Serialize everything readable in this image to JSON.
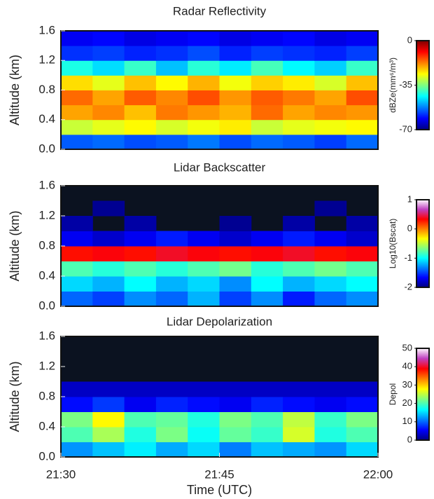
{
  "chart_data": [
    {
      "type": "heatmap",
      "title": "Radar Reflectivity",
      "ylabel": "Altitude (km)",
      "ylim": [
        0,
        1.6
      ],
      "yticks": [
        {
          "value": 0,
          "label": "0.0"
        },
        0.4,
        0.8,
        1.2,
        1.6
      ],
      "xlim": [
        "21:30",
        "22:00"
      ],
      "x": [
        "21:30",
        "21:33",
        "21:36",
        "21:39",
        "21:42",
        "21:45",
        "21:48",
        "21:51",
        "21:54",
        "21:57"
      ],
      "y": [
        0,
        0.2,
        0.4,
        0.6,
        0.8,
        1.0,
        1.2,
        1.4
      ],
      "z": [
        [
          -55,
          -54,
          -56,
          -55,
          -53,
          -56,
          -54,
          -55,
          -57,
          -54
        ],
        [
          -30,
          -28,
          -26,
          -29,
          -27,
          -25,
          -30,
          -28,
          -27,
          -26
        ],
        [
          -20,
          -18,
          -22,
          -17,
          -19,
          -21,
          -16,
          -20,
          -18,
          -19
        ],
        [
          -16,
          -20,
          -15,
          -18,
          -14,
          -19,
          -15,
          -17,
          -20,
          -14
        ],
        [
          -24,
          -28,
          -22,
          -26,
          -21,
          -27,
          -23,
          -25,
          -29,
          -22
        ],
        [
          -42,
          -46,
          -40,
          -48,
          -41,
          -45,
          -39,
          -44,
          -47,
          -40
        ],
        [
          -58,
          -57,
          -59,
          -58,
          -56,
          -59,
          -57,
          -58,
          -59,
          -57
        ],
        [
          -62,
          -61,
          -63,
          -62,
          -61,
          -63,
          -62,
          -61,
          -63,
          -62
        ]
      ],
      "colorbar": {
        "label": "dBZe(mm⁶/m³)",
        "zlim": [
          -70,
          0
        ],
        "zticks": [
          -70,
          -35,
          0
        ],
        "colormap": [
          "#00007f",
          "#0000ff",
          "#0080ff",
          "#00ffff",
          "#80ff80",
          "#ffff00",
          "#ff8000",
          "#ff0000",
          "#7f0000"
        ]
      },
      "missing_color": "#0b1220"
    },
    {
      "type": "heatmap",
      "title": "Lidar Backscatter",
      "ylabel": "Altitude (km)",
      "ylim": [
        0,
        1.6
      ],
      "yticks": [
        {
          "value": 0,
          "label": "0.0"
        },
        0.4,
        0.8,
        1.2,
        1.6
      ],
      "xlim": [
        "21:30",
        "22:00"
      ],
      "x": [
        "21:30",
        "21:33",
        "21:36",
        "21:39",
        "21:42",
        "21:45",
        "21:48",
        "21:51",
        "21:54",
        "21:57"
      ],
      "y": [
        0,
        0.2,
        0.4,
        0.6,
        0.8,
        1.0,
        1.2,
        1.4
      ],
      "z": [
        [
          -1.4,
          -1.5,
          -1.3,
          -1.4,
          -1.2,
          -1.5,
          -1.3,
          -1.6,
          -1.4,
          -1.3
        ],
        [
          -1.1,
          -1.2,
          -1.0,
          -1.2,
          -1.1,
          -1.3,
          -1.0,
          -1.2,
          -1.1,
          -1.0
        ],
        [
          -0.8,
          -0.9,
          -0.8,
          -0.9,
          -0.8,
          -0.7,
          -0.9,
          -0.8,
          -0.7,
          -0.8
        ],
        [
          0.3,
          0.35,
          0.3,
          0.4,
          0.35,
          0.3,
          0.35,
          0.4,
          0.3,
          0.35
        ],
        [
          -1.7,
          -1.8,
          -1.7,
          -1.6,
          -1.7,
          -1.8,
          -1.7,
          -1.6,
          -1.7,
          -1.8
        ],
        [
          -1.9,
          null,
          -1.9,
          null,
          null,
          -1.95,
          null,
          -1.9,
          null,
          -1.9
        ],
        [
          null,
          -1.95,
          null,
          null,
          null,
          null,
          null,
          null,
          -1.95,
          null
        ],
        [
          null,
          null,
          null,
          null,
          null,
          null,
          null,
          null,
          null,
          null
        ]
      ],
      "colorbar": {
        "label": "Log10(Bscat)",
        "zlim": [
          -2,
          1
        ],
        "zticks": [
          -2,
          -1,
          0,
          1
        ],
        "colormap": [
          "#00007f",
          "#0000ff",
          "#0080ff",
          "#00ffff",
          "#80ff80",
          "#ffff00",
          "#ff8000",
          "#ff0000",
          "#c040c0",
          "#ffffff"
        ]
      },
      "missing_color": "#0b1220"
    },
    {
      "type": "heatmap",
      "title": "Lidar Depolarization",
      "ylabel": "Altitude (km)",
      "xlabel": "Time (UTC)",
      "ylim": [
        0,
        1.6
      ],
      "yticks": [
        {
          "value": 0,
          "label": "0.0"
        },
        0.4,
        0.8,
        1.2,
        1.6
      ],
      "xlim": [
        "21:30",
        "22:00"
      ],
      "xticks": [
        "21:30",
        "21:45",
        "22:00"
      ],
      "x": [
        "21:30",
        "21:33",
        "21:36",
        "21:39",
        "21:42",
        "21:45",
        "21:48",
        "21:51",
        "21:54",
        "21:57"
      ],
      "y": [
        0,
        0.2,
        0.4,
        0.6,
        0.8,
        1.0,
        1.2,
        1.4
      ],
      "z": [
        [
          12,
          14,
          16,
          13,
          15,
          11,
          14,
          13,
          12,
          15
        ],
        [
          20,
          24,
          18,
          22,
          17,
          21,
          19,
          26,
          18,
          20
        ],
        [
          22,
          28,
          20,
          21,
          18,
          22,
          20,
          25,
          19,
          22
        ],
        [
          6,
          8,
          5,
          7,
          6,
          5,
          7,
          6,
          5,
          6
        ],
        [
          3,
          3,
          3,
          3,
          3,
          3,
          3,
          3,
          3,
          3
        ],
        [
          null,
          null,
          null,
          null,
          null,
          null,
          null,
          null,
          null,
          null
        ],
        [
          null,
          null,
          null,
          null,
          null,
          null,
          null,
          null,
          null,
          null
        ],
        [
          null,
          null,
          null,
          null,
          null,
          null,
          null,
          null,
          null,
          null
        ]
      ],
      "colorbar": {
        "label": "Depol",
        "zlim": [
          0,
          50
        ],
        "zticks": [
          0,
          10,
          20,
          30,
          40,
          50
        ],
        "colormap": [
          "#00007f",
          "#0000ff",
          "#0080ff",
          "#00ffff",
          "#80ff80",
          "#ffff00",
          "#ff8000",
          "#ff0000",
          "#c040c0",
          "#ffffff"
        ]
      },
      "missing_color": "#0b1220"
    }
  ]
}
